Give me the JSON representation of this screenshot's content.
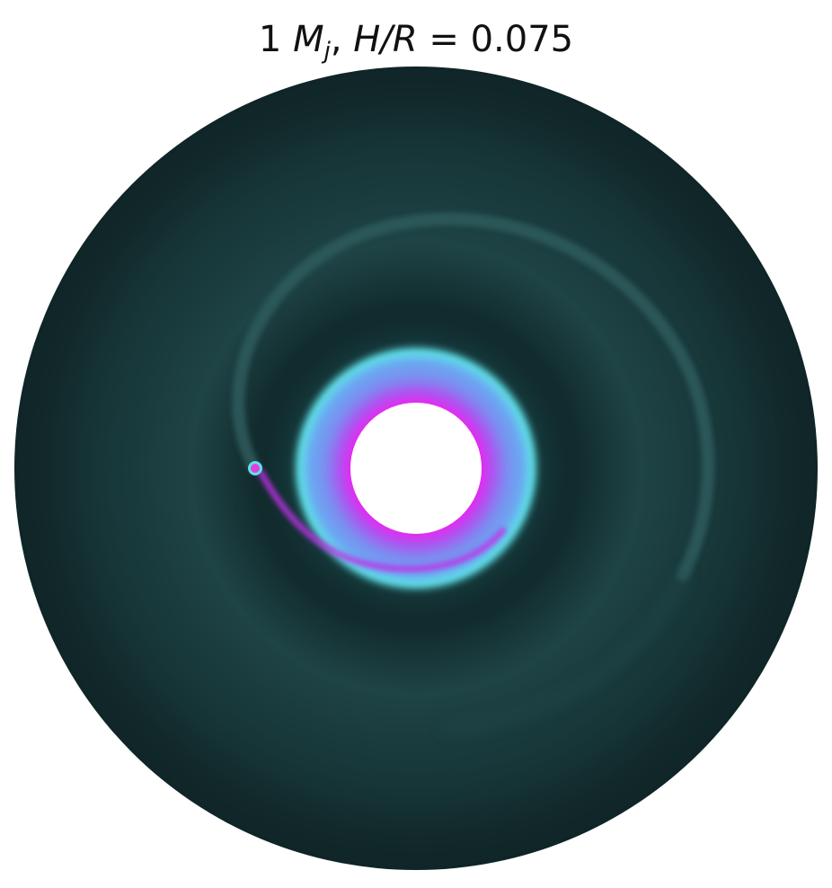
{
  "title": {
    "prefix": "1 ",
    "mass_symbol": "M",
    "mass_subscript": "j",
    "separator": ", ",
    "ratio_label": "H/R",
    "equals": " =  ",
    "value": "0.075"
  },
  "image": {
    "subject": "protoplanetary disk with embedded planet",
    "colors": {
      "background": "#ffffff",
      "outer_disk": "#10282a",
      "ring_band": "#1f4446",
      "gap": "#0c1f21",
      "spiral_arm": "#2e5b5d",
      "inner_cyan": "#5fe0e6",
      "inner_violet": "#7c8cf0",
      "inner_magenta": "#f020f0",
      "inner_hole": "#ffffff",
      "planet": "#e040e0"
    }
  }
}
